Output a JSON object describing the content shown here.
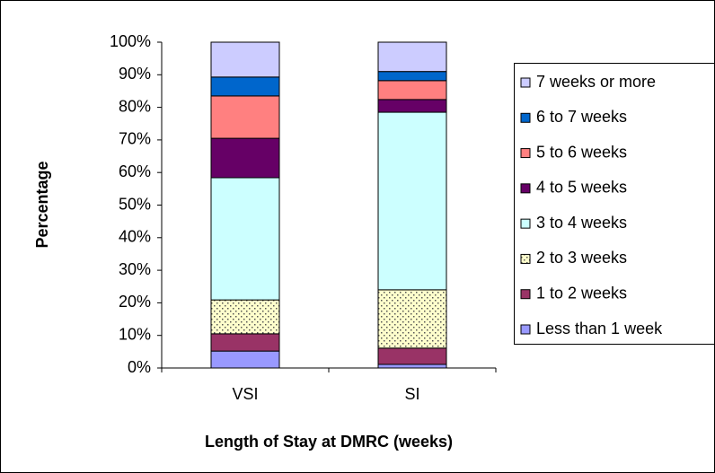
{
  "chart_data": {
    "type": "stacked_bar",
    "x_label": "Length of Stay at DMRC (weeks)",
    "y_label": "Percentage",
    "categories": [
      "VSI",
      "SI"
    ],
    "series": [
      {
        "name": "Less than 1 week",
        "color": "#9999ff",
        "values": [
          5.2,
          1.1
        ]
      },
      {
        "name": "1 to 2 weeks",
        "color": "#993366",
        "values": [
          5.3,
          5.0
        ]
      },
      {
        "name": "2 to 3 weeks",
        "color": "#ffffcc",
        "pattern": "dots",
        "values": [
          10.4,
          17.9
        ]
      },
      {
        "name": "3 to 4 weeks",
        "color": "#ccffff",
        "values": [
          37.5,
          54.5
        ]
      },
      {
        "name": "4 to 5 weeks",
        "color": "#660066",
        "values": [
          12.1,
          3.9
        ]
      },
      {
        "name": "5 to 6 weeks",
        "color": "#ff8080",
        "values": [
          13.0,
          5.8
        ]
      },
      {
        "name": "6 to 7 weeks",
        "color": "#0066cc",
        "values": [
          5.8,
          2.8
        ]
      },
      {
        "name": "7 weeks or more",
        "color": "#ccccff",
        "values": [
          10.7,
          9.0
        ]
      }
    ],
    "ylim": [
      0,
      100
    ],
    "yticks": [
      {
        "value": 0,
        "label": "0%"
      },
      {
        "value": 10,
        "label": "10%"
      },
      {
        "value": 20,
        "label": "20%"
      },
      {
        "value": 30,
        "label": "30%"
      },
      {
        "value": 40,
        "label": "40%"
      },
      {
        "value": 50,
        "label": "50%"
      },
      {
        "value": 60,
        "label": "60%"
      },
      {
        "value": 70,
        "label": "70%"
      },
      {
        "value": 80,
        "label": "80%"
      },
      {
        "value": 90,
        "label": "90%"
      },
      {
        "value": 100,
        "label": "100%"
      }
    ],
    "legend": "right"
  }
}
